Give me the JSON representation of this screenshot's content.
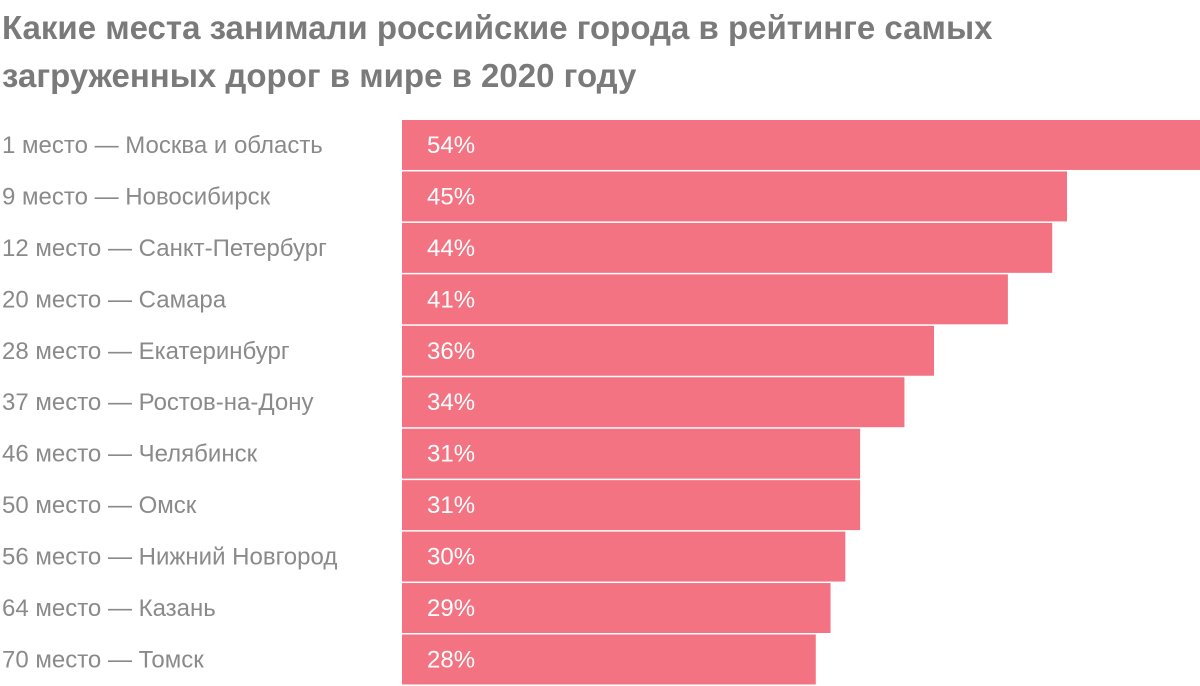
{
  "chart_data": {
    "type": "bar",
    "orientation": "horizontal",
    "title": "Какие места занимали российские города в рейтинге самых загруженных дорог в мире в 2020 году",
    "categories": [
      "1 место — Москва и область",
      "9 место — Новосибирск",
      "12 место — Санкт-Петербург",
      "20 место — Самара",
      "28 место — Екатеринбург",
      "37 место — Ростов-на-Дону",
      "46 место — Челябинск",
      "50 место — Омск",
      "56 место — Нижний Новгород",
      "64 место — Казань",
      "70 место — Томск"
    ],
    "values": [
      54,
      45,
      44,
      41,
      36,
      34,
      31,
      31,
      30,
      29,
      28
    ],
    "value_labels": [
      "54%",
      "45%",
      "44%",
      "41%",
      "36%",
      "34%",
      "31%",
      "31%",
      "30%",
      "29%",
      "28%"
    ],
    "xlim": [
      0,
      54
    ],
    "grid": false,
    "legend": "none",
    "bar_color": "#f47382",
    "label_color": "#8a8a8a",
    "value_label_color": "#ffffff"
  }
}
